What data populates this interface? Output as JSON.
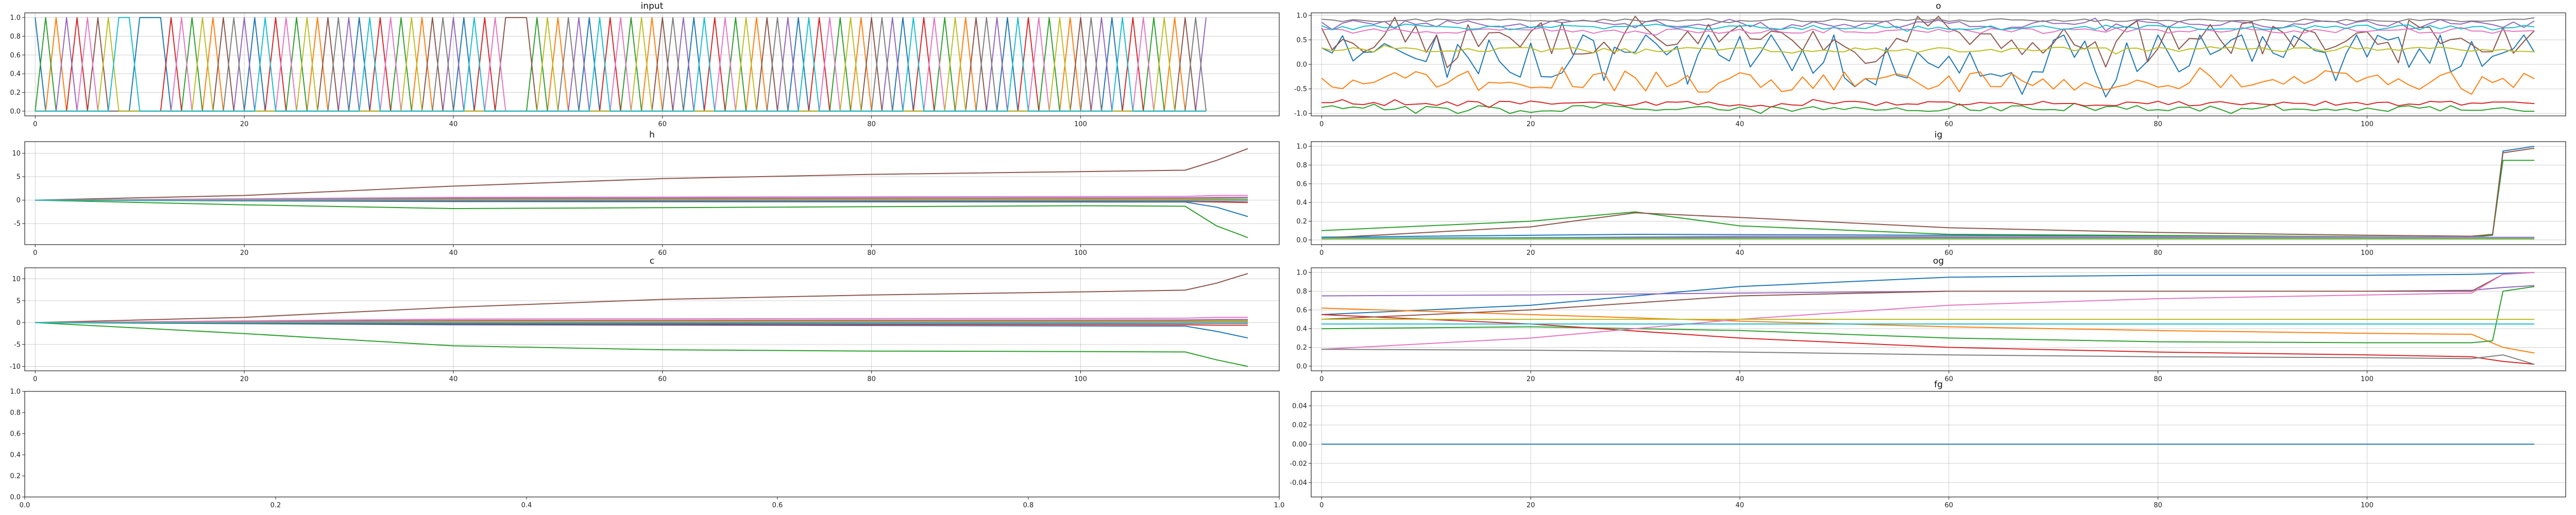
{
  "palette": [
    "#1f77b4",
    "#ff7f0e",
    "#2ca02c",
    "#d62728",
    "#9467bd",
    "#8c564b",
    "#e377c2",
    "#7f7f7f",
    "#bcbd22",
    "#17becf"
  ],
  "chart_data": [
    {
      "id": "input",
      "type": "line",
      "title": "input",
      "xlim": [
        -1,
        119
      ],
      "ylim": [
        -0.05,
        1.05
      ],
      "xticks": [
        0,
        20,
        40,
        60,
        80,
        100
      ],
      "yticks": [
        0.0,
        0.2,
        0.4,
        0.6,
        0.8,
        1.0
      ],
      "grid": true,
      "sequence_length": 113,
      "active_series_by_step": [
        0,
        2,
        1,
        4,
        3,
        6,
        5,
        8,
        9,
        9,
        0,
        0,
        0,
        3,
        6,
        2,
        8,
        1,
        5,
        7,
        4,
        0,
        9,
        3,
        6,
        2,
        8,
        1,
        5,
        7,
        4,
        0,
        9,
        3,
        6,
        2,
        8,
        1,
        5,
        7,
        4,
        0,
        9,
        3,
        6,
        5,
        5,
        5,
        2,
        8,
        1,
        7,
        4,
        0,
        9,
        3,
        6,
        2,
        8,
        1,
        5,
        7,
        4,
        0,
        9,
        3,
        6,
        2,
        8,
        1,
        5,
        7,
        4,
        0,
        9,
        3,
        6,
        2,
        8,
        1,
        5,
        7,
        4,
        0,
        9,
        3,
        6,
        2,
        8,
        1,
        5,
        7,
        4,
        0,
        9,
        3,
        6,
        2,
        8,
        1,
        5,
        7,
        4,
        0,
        9,
        3,
        6,
        2,
        8,
        1,
        5,
        7,
        4
      ]
    },
    {
      "id": "o",
      "type": "line",
      "title": "o",
      "xlim": [
        -1,
        119
      ],
      "ylim": [
        -1.05,
        1.05
      ],
      "xticks": [
        0,
        20,
        40,
        60,
        80,
        100
      ],
      "yticks": [
        -1.0,
        -0.5,
        0.0,
        0.5,
        1.0
      ],
      "grid": true,
      "series": [
        {
          "base": 0.2,
          "jitter": 0.55,
          "min": -0.95,
          "max": 0.6
        },
        {
          "base": -0.35,
          "jitter": 0.22,
          "min": -0.8,
          "max": 0.1
        },
        {
          "base": -0.9,
          "jitter": 0.06,
          "min": -1.0,
          "max": -0.75
        },
        {
          "base": -0.8,
          "jitter": 0.05,
          "min": -0.95,
          "max": -0.7
        },
        {
          "base": 0.82,
          "jitter": 0.08,
          "min": 0.55,
          "max": 0.95
        },
        {
          "base": 0.55,
          "jitter": 0.35,
          "min": -0.1,
          "max": 0.98
        },
        {
          "base": 0.68,
          "jitter": 0.05,
          "min": 0.55,
          "max": 0.8
        },
        {
          "base": 0.9,
          "jitter": 0.03,
          "min": 0.85,
          "max": 0.95
        },
        {
          "base": 0.3,
          "jitter": 0.05,
          "min": 0.2,
          "max": 0.4
        },
        {
          "base": 0.75,
          "jitter": 0.05,
          "min": 0.6,
          "max": 0.85
        }
      ]
    },
    {
      "id": "h",
      "type": "line",
      "title": "h",
      "xlim": [
        -1,
        119
      ],
      "ylim": [
        -9.5,
        12.5
      ],
      "xticks": [
        0,
        20,
        40,
        60,
        80,
        100
      ],
      "yticks": [
        -5,
        0,
        5,
        10
      ],
      "grid": true,
      "series": [
        {
          "x": [
            0,
            40,
            110,
            113,
            116
          ],
          "y": [
            0,
            -0.3,
            -0.4,
            -1.5,
            -3.5
          ]
        },
        {
          "x": [
            0,
            40,
            110,
            113,
            116
          ],
          "y": [
            0,
            0.2,
            0.3,
            0.4,
            0.5
          ]
        },
        {
          "x": [
            0,
            20,
            40,
            60,
            100,
            110,
            113,
            116
          ],
          "y": [
            0,
            -1.0,
            -1.8,
            -1.6,
            -1.2,
            -1.3,
            -5.5,
            -8.0
          ]
        },
        {
          "x": [
            0,
            40,
            110,
            113,
            116
          ],
          "y": [
            0,
            -0.2,
            -0.3,
            -0.4,
            -0.5
          ]
        },
        {
          "x": [
            0,
            40,
            110,
            113,
            116
          ],
          "y": [
            0,
            0.4,
            0.5,
            0.6,
            0.6
          ]
        },
        {
          "x": [
            0,
            20,
            40,
            60,
            80,
            100,
            110,
            113,
            116
          ],
          "y": [
            0,
            1.0,
            3.0,
            4.6,
            5.5,
            6.1,
            6.4,
            8.5,
            11.0
          ]
        },
        {
          "x": [
            0,
            40,
            110,
            113,
            116
          ],
          "y": [
            0,
            0.6,
            0.8,
            1.0,
            1.0
          ]
        },
        {
          "x": [
            0,
            40,
            110,
            113,
            116
          ],
          "y": [
            0,
            -0.1,
            -0.2,
            -0.2,
            -0.2
          ]
        },
        {
          "x": [
            0,
            40,
            110,
            113,
            116
          ],
          "y": [
            0,
            0.1,
            0.1,
            0.2,
            0.2
          ]
        },
        {
          "x": [
            0,
            40,
            110,
            113,
            116
          ],
          "y": [
            0,
            0.0,
            0.0,
            0.1,
            0.1
          ]
        }
      ]
    },
    {
      "id": "ig",
      "type": "line",
      "title": "ig",
      "xlim": [
        -1,
        119
      ],
      "ylim": [
        -0.05,
        1.05
      ],
      "xticks": [
        0,
        20,
        40,
        60,
        80,
        100
      ],
      "yticks": [
        0.0,
        0.2,
        0.4,
        0.6,
        0.8,
        1.0
      ],
      "grid": true,
      "series": [
        {
          "x": [
            0,
            30,
            60,
            110,
            112,
            113,
            116
          ],
          "y": [
            0.03,
            0.06,
            0.05,
            0.03,
            0.05,
            0.95,
            1.0
          ]
        },
        {
          "x": [
            0,
            40,
            110,
            113,
            116
          ],
          "y": [
            0.02,
            0.02,
            0.01,
            0.01,
            0.01
          ]
        },
        {
          "x": [
            0,
            20,
            30,
            40,
            60,
            110,
            112,
            113,
            116
          ],
          "y": [
            0.1,
            0.2,
            0.3,
            0.15,
            0.06,
            0.03,
            0.05,
            0.85,
            0.85
          ]
        },
        {
          "x": [
            0,
            40,
            110,
            113,
            116
          ],
          "y": [
            0.01,
            0.02,
            0.02,
            0.02,
            0.02
          ]
        },
        {
          "x": [
            0,
            40,
            110,
            113,
            116
          ],
          "y": [
            0.02,
            0.03,
            0.02,
            0.02,
            0.02
          ]
        },
        {
          "x": [
            0,
            20,
            30,
            40,
            60,
            80,
            100,
            110,
            112,
            113,
            116
          ],
          "y": [
            0.02,
            0.14,
            0.29,
            0.24,
            0.13,
            0.08,
            0.05,
            0.04,
            0.06,
            0.93,
            0.98
          ]
        },
        {
          "x": [
            0,
            40,
            110,
            113,
            116
          ],
          "y": [
            0.01,
            0.04,
            0.03,
            0.03,
            0.03
          ]
        },
        {
          "x": [
            0,
            40,
            110,
            113,
            116
          ],
          "y": [
            0.02,
            0.03,
            0.02,
            0.02,
            0.02
          ]
        },
        {
          "x": [
            0,
            40,
            110,
            113,
            116
          ],
          "y": [
            0.01,
            0.01,
            0.01,
            0.01,
            0.01
          ]
        },
        {
          "x": [
            0,
            40,
            110,
            113,
            116
          ],
          "y": [
            0.02,
            0.02,
            0.02,
            0.02,
            0.02
          ]
        }
      ]
    },
    {
      "id": "c",
      "type": "line",
      "title": "c",
      "xlim": [
        -1,
        119
      ],
      "ylim": [
        -11,
        12.5
      ],
      "xticks": [
        0,
        20,
        40,
        60,
        80,
        100
      ],
      "yticks": [
        -10,
        -5,
        0,
        5,
        10
      ],
      "grid": true,
      "series": [
        {
          "x": [
            0,
            40,
            110,
            113,
            116
          ],
          "y": [
            0,
            -0.5,
            -0.8,
            -2.0,
            -3.5
          ]
        },
        {
          "x": [
            0,
            40,
            110,
            113,
            116
          ],
          "y": [
            0,
            0.3,
            0.4,
            0.5,
            0.5
          ]
        },
        {
          "x": [
            0,
            20,
            40,
            60,
            80,
            100,
            110,
            113,
            116
          ],
          "y": [
            0,
            -2.5,
            -5.3,
            -6.2,
            -6.5,
            -6.6,
            -6.7,
            -8.5,
            -10.0
          ]
        },
        {
          "x": [
            0,
            40,
            110,
            113,
            116
          ],
          "y": [
            0,
            -0.3,
            -0.5,
            -0.6,
            -0.6
          ]
        },
        {
          "x": [
            0,
            40,
            110,
            113,
            116
          ],
          "y": [
            0,
            0.5,
            0.6,
            0.7,
            0.7
          ]
        },
        {
          "x": [
            0,
            20,
            40,
            60,
            80,
            100,
            110,
            113,
            116
          ],
          "y": [
            0,
            1.2,
            3.5,
            5.3,
            6.3,
            7.0,
            7.4,
            9.0,
            11.2
          ]
        },
        {
          "x": [
            0,
            40,
            110,
            113,
            116
          ],
          "y": [
            0,
            0.8,
            1.0,
            1.2,
            1.2
          ]
        },
        {
          "x": [
            0,
            40,
            110,
            113,
            116
          ],
          "y": [
            0,
            -0.1,
            -0.2,
            -0.2,
            -0.2
          ]
        },
        {
          "x": [
            0,
            40,
            110,
            113,
            116
          ],
          "y": [
            0,
            0.2,
            0.2,
            0.3,
            0.3
          ]
        },
        {
          "x": [
            0,
            40,
            110,
            113,
            116
          ],
          "y": [
            0,
            0.0,
            0.1,
            0.1,
            0.1
          ]
        }
      ]
    },
    {
      "id": "og",
      "type": "line",
      "title": "og",
      "xlim": [
        -1,
        119
      ],
      "ylim": [
        -0.05,
        1.05
      ],
      "xticks": [
        0,
        20,
        40,
        60,
        80,
        100
      ],
      "yticks": [
        0.0,
        0.2,
        0.4,
        0.6,
        0.8,
        1.0
      ],
      "grid": true,
      "series": [
        {
          "x": [
            0,
            20,
            40,
            60,
            80,
            100,
            110,
            113,
            116
          ],
          "y": [
            0.55,
            0.65,
            0.85,
            0.95,
            0.97,
            0.97,
            0.98,
            0.99,
            1.0
          ]
        },
        {
          "x": [
            0,
            20,
            40,
            60,
            80,
            100,
            110,
            113,
            116
          ],
          "y": [
            0.62,
            0.55,
            0.48,
            0.42,
            0.38,
            0.35,
            0.34,
            0.2,
            0.14
          ]
        },
        {
          "x": [
            0,
            20,
            40,
            60,
            80,
            100,
            110,
            112,
            113,
            116
          ],
          "y": [
            0.4,
            0.42,
            0.38,
            0.3,
            0.26,
            0.25,
            0.25,
            0.27,
            0.8,
            0.85
          ]
        },
        {
          "x": [
            0,
            20,
            40,
            60,
            80,
            100,
            110,
            113,
            116
          ],
          "y": [
            0.55,
            0.45,
            0.3,
            0.2,
            0.15,
            0.12,
            0.1,
            0.05,
            0.02
          ]
        },
        {
          "x": [
            0,
            20,
            40,
            60,
            80,
            100,
            110,
            113,
            116
          ],
          "y": [
            0.75,
            0.76,
            0.78,
            0.8,
            0.8,
            0.8,
            0.81,
            0.84,
            0.86
          ]
        },
        {
          "x": [
            0,
            20,
            40,
            60,
            80,
            100,
            110,
            113,
            116
          ],
          "y": [
            0.5,
            0.6,
            0.75,
            0.8,
            0.8,
            0.8,
            0.8,
            0.98,
            1.0
          ]
        },
        {
          "x": [
            0,
            20,
            40,
            60,
            80,
            100,
            110,
            113,
            116
          ],
          "y": [
            0.18,
            0.3,
            0.5,
            0.65,
            0.72,
            0.76,
            0.78,
            0.98,
            1.0
          ]
        },
        {
          "x": [
            0,
            20,
            40,
            60,
            80,
            100,
            110,
            113,
            116
          ],
          "y": [
            0.18,
            0.17,
            0.15,
            0.12,
            0.1,
            0.09,
            0.08,
            0.12,
            0.02
          ]
        },
        {
          "x": [
            0,
            40,
            110,
            113,
            116
          ],
          "y": [
            0.5,
            0.5,
            0.5,
            0.5,
            0.5
          ]
        },
        {
          "x": [
            0,
            40,
            110,
            113,
            116
          ],
          "y": [
            0.45,
            0.45,
            0.45,
            0.45,
            0.45
          ]
        }
      ]
    },
    {
      "id": "empty",
      "type": "line",
      "title": "",
      "xlim": [
        0.0,
        1.0
      ],
      "ylim": [
        0.0,
        1.0
      ],
      "xticks": [
        0.0,
        0.2,
        0.4,
        0.6,
        0.8,
        1.0
      ],
      "yticks": [
        0.0,
        0.2,
        0.4,
        0.6,
        0.8,
        1.0
      ],
      "grid": false,
      "series": []
    },
    {
      "id": "fg",
      "type": "line",
      "title": "fg",
      "xlim": [
        -1,
        119
      ],
      "ylim": [
        -0.055,
        0.055
      ],
      "xticks": [
        0,
        20,
        40,
        60,
        80,
        100
      ],
      "yticks": [
        -0.04,
        -0.02,
        0.0,
        0.02,
        0.04
      ],
      "grid": true,
      "series": [
        {
          "x": [
            0,
            116
          ],
          "y": [
            0.0,
            0.0
          ]
        }
      ]
    }
  ]
}
